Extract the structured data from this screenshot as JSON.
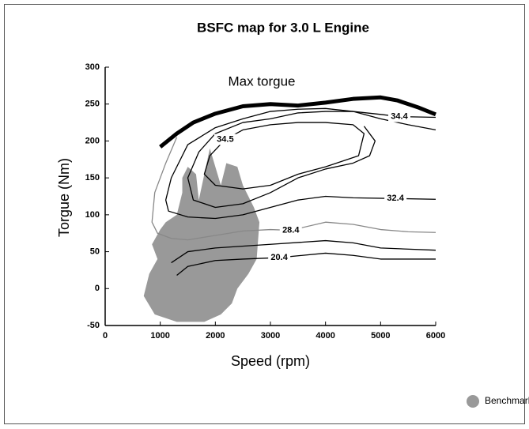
{
  "chart_data": {
    "type": "contour",
    "title": "BSFC map for 3.0 L Engine",
    "xlabel": "Speed (rpm)",
    "ylabel": "Torgue (Nm)",
    "annotation": "Max torgue",
    "xlim": [
      0,
      6000
    ],
    "ylim": [
      -50,
      300
    ],
    "xticks": [
      0,
      1000,
      2000,
      3000,
      4000,
      5000,
      6000
    ],
    "yticks": [
      -50,
      0,
      50,
      100,
      150,
      200,
      250,
      300
    ],
    "area": {
      "name": "Benchmarh map",
      "color": "#999999",
      "x": [
        1400,
        1500,
        1650,
        1700,
        1800,
        1900,
        2100,
        2200,
        2400,
        2500,
        2700,
        2800,
        2750,
        2600,
        2400,
        2300,
        2100,
        1800,
        1300,
        900,
        700,
        800,
        950,
        850,
        1000,
        1100,
        1300,
        1400
      ],
      "y": [
        150,
        165,
        155,
        120,
        155,
        190,
        140,
        170,
        165,
        140,
        110,
        90,
        40,
        20,
        0,
        -20,
        -35,
        -45,
        -45,
        -35,
        -10,
        20,
        40,
        60,
        80,
        90,
        100,
        130
      ]
    },
    "series": [
      {
        "color": "#000000",
        "width": 5,
        "x": [
          1000,
          1300,
          1600,
          2000,
          2500,
          3000,
          3500,
          4000,
          4500,
          5000,
          5300,
          5700,
          6000
        ],
        "y": [
          192,
          210,
          225,
          237,
          247,
          250,
          248,
          252,
          257,
          259,
          255,
          245,
          236
        ]
      },
      {
        "level": 34.4,
        "color": "#000000",
        "width": 1.3,
        "x": [
          6000,
          5340,
          5000,
          4500,
          4000,
          3500,
          3000,
          2500,
          2000,
          1700,
          1500,
          1600,
          2000,
          2500,
          3000,
          3500,
          4000,
          4500,
          4800,
          4900,
          4700
        ],
        "y": [
          232,
          233,
          236,
          240,
          240,
          238,
          230,
          225,
          210,
          185,
          150,
          120,
          110,
          115,
          130,
          150,
          162,
          170,
          180,
          200,
          220
        ]
      },
      {
        "level": 34.5,
        "color": "#000000",
        "width": 1.3,
        "x": [
          2180,
          2500,
          3000,
          3500,
          4000,
          4500,
          4700,
          4600,
          4000,
          3500,
          3000,
          2500,
          2000,
          1800,
          1900,
          2180
        ],
        "y": [
          202,
          215,
          222,
          225,
          225,
          222,
          210,
          180,
          165,
          155,
          140,
          135,
          140,
          155,
          180,
          202
        ]
      },
      {
        "level": 32.4,
        "color": "#000000",
        "width": 1.3,
        "x": [
          6000,
          5500,
          5000,
          4500,
          4000,
          3500,
          3000,
          2500,
          2000,
          1500,
          1200,
          1100,
          1150,
          1500,
          2000,
          2500,
          3000,
          3500,
          4000,
          4500,
          5270,
          6000
        ],
        "y": [
          215,
          222,
          230,
          240,
          244,
          243,
          240,
          230,
          218,
          195,
          150,
          120,
          105,
          97,
          95,
          100,
          110,
          120,
          125,
          123,
          122,
          121
        ]
      },
      {
        "level": 28.4,
        "color": "#888888",
        "width": 1.3,
        "x": [
          1300,
          1100,
          900,
          850,
          950,
          1200,
          1500,
          2000,
          2500,
          3000,
          3370,
          4000,
          4500,
          5000,
          5500,
          6000
        ],
        "y": [
          205,
          170,
          130,
          90,
          75,
          68,
          66,
          72,
          78,
          80,
          79,
          90,
          87,
          80,
          77,
          76
        ]
      },
      {
        "level": 20.4,
        "color": "#000000",
        "width": 1.3,
        "x": [
          1300,
          1500,
          2000,
          2500,
          3160,
          4000,
          4500,
          5000,
          6000
        ],
        "y": [
          18,
          30,
          38,
          40,
          42,
          48,
          45,
          40,
          40
        ]
      },
      {
        "color": "#000000",
        "width": 1.3,
        "x": [
          1200,
          1500,
          2000,
          3000,
          4000,
          4500,
          5000,
          6000
        ],
        "y": [
          35,
          50,
          55,
          60,
          65,
          62,
          55,
          52
        ]
      }
    ]
  }
}
